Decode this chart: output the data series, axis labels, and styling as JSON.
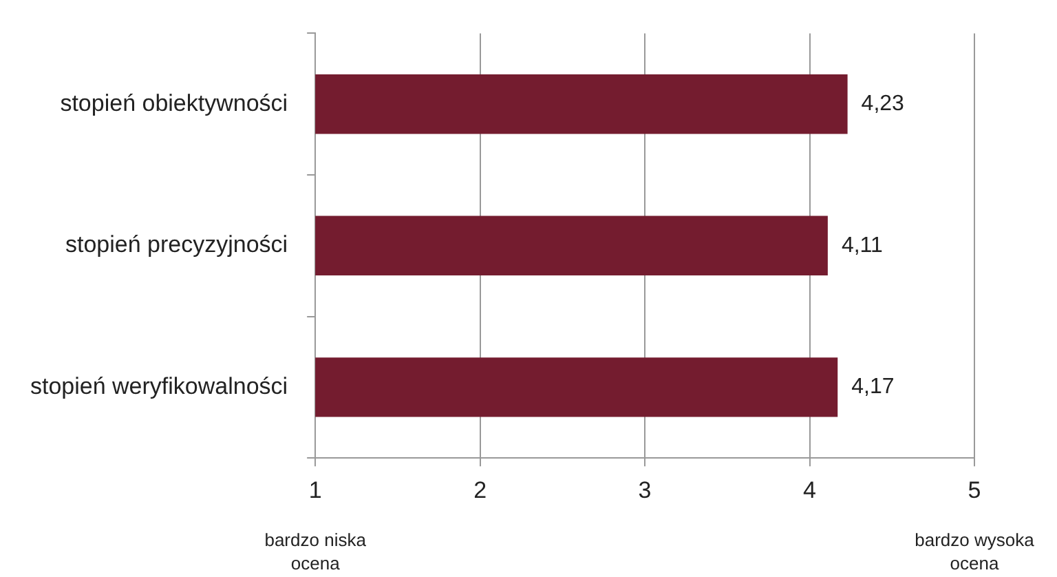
{
  "chart_data": {
    "type": "bar",
    "orientation": "horizontal",
    "categories": [
      "stopień obiektywności",
      "stopień precyzyjności",
      "stopień weryfikowalności"
    ],
    "values": [
      4.23,
      4.11,
      4.17
    ],
    "value_labels": [
      "4,23",
      "4,11",
      "4,17"
    ],
    "color": "#741c2f",
    "xlim": [
      1,
      5
    ],
    "xticks": [
      1,
      2,
      3,
      4,
      5
    ],
    "grid": "x",
    "legend": false,
    "annotations": [
      "bardzo niska ocena",
      "bardzo wysoka ocena"
    ]
  }
}
